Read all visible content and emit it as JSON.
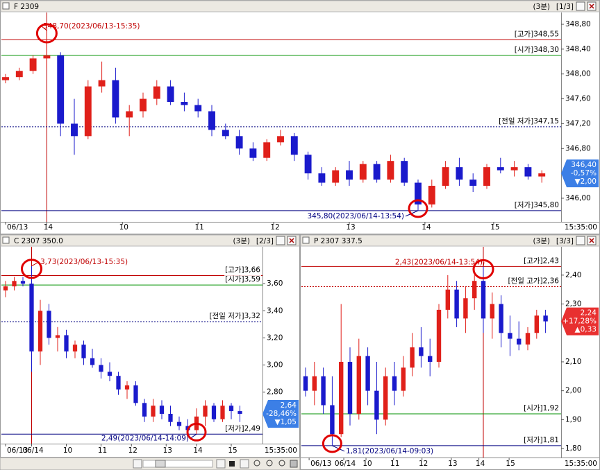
{
  "chart_data": [
    {
      "type": "candlestick",
      "title": "F 2309",
      "interval": "(3분)",
      "page": "[1/3]",
      "up_color": "#e0201a",
      "down_color": "#1a1acc",
      "open": [
        347.9,
        347.95,
        348.05,
        348.25,
        348.3,
        347.2,
        347.0,
        347.8,
        347.9,
        347.3,
        347.4,
        347.6,
        347.8,
        347.55,
        347.5,
        347.4,
        347.1,
        347.0,
        346.8,
        346.65,
        346.9,
        347.0,
        346.7,
        346.4,
        346.25,
        346.45,
        346.3,
        346.55,
        346.3,
        346.6,
        346.25,
        345.9,
        346.2,
        346.5,
        346.3,
        346.2,
        346.5,
        346.45,
        346.5,
        346.35
      ],
      "high": [
        348.0,
        348.1,
        348.3,
        348.7,
        348.35,
        347.6,
        347.9,
        348.2,
        348.1,
        347.5,
        347.7,
        347.9,
        347.9,
        347.7,
        347.6,
        347.5,
        347.2,
        347.1,
        346.9,
        346.95,
        347.1,
        347.05,
        346.75,
        346.5,
        346.5,
        346.6,
        346.6,
        346.6,
        346.7,
        346.65,
        346.3,
        346.3,
        346.6,
        346.65,
        346.4,
        346.55,
        346.65,
        346.6,
        346.55,
        346.45
      ],
      "low": [
        347.85,
        347.9,
        348.0,
        348.1,
        347.0,
        346.7,
        346.95,
        347.7,
        347.2,
        347.0,
        347.3,
        347.5,
        347.5,
        347.4,
        347.3,
        347.0,
        346.95,
        346.7,
        346.6,
        346.6,
        346.85,
        346.6,
        346.3,
        346.2,
        346.2,
        346.2,
        346.25,
        346.25,
        346.25,
        346.2,
        345.8,
        345.85,
        346.15,
        346.2,
        346.1,
        346.15,
        346.4,
        346.35,
        346.3,
        346.25
      ],
      "close": [
        347.95,
        348.05,
        348.25,
        348.3,
        347.2,
        347.0,
        347.8,
        347.9,
        347.3,
        347.4,
        347.6,
        347.8,
        347.55,
        347.5,
        347.4,
        347.1,
        347.0,
        346.8,
        346.65,
        346.9,
        347.0,
        346.7,
        346.4,
        346.25,
        346.45,
        346.3,
        346.55,
        346.3,
        346.6,
        346.25,
        345.9,
        346.2,
        346.5,
        346.3,
        346.2,
        346.5,
        346.45,
        346.5,
        346.35,
        346.4
      ],
      "ylim": [
        345.62,
        348.99
      ],
      "yticks": [
        {
          "value": 346.0,
          "label": "346,00"
        },
        {
          "value": 346.8,
          "label": "346,80"
        },
        {
          "value": 347.2,
          "label": "347,20"
        },
        {
          "value": 347.6,
          "label": "347,60"
        },
        {
          "value": 348.0,
          "label": "348,00"
        },
        {
          "value": 348.4,
          "label": "348,40"
        },
        {
          "value": 348.8,
          "label": "348,80"
        }
      ],
      "xticks": [
        {
          "value": 0,
          "label": "06/13"
        },
        {
          "value": 3,
          "label": "14"
        },
        {
          "value": 8.5,
          "label": "10"
        },
        {
          "value": 14,
          "label": "11"
        },
        {
          "value": 19.5,
          "label": "12"
        },
        {
          "value": 25,
          "label": "13"
        },
        {
          "value": 30.5,
          "label": "14"
        },
        {
          "value": 35.5,
          "label": "15"
        }
      ],
      "time_label": "15:35:00",
      "levels": [
        {
          "label": "[고가]348,55",
          "value": 348.55,
          "color": "#c00000",
          "style": "solid"
        },
        {
          "label": "[시가]348,30",
          "value": 348.3,
          "color": "#009000",
          "style": "solid"
        },
        {
          "label": "[전일 저가]347,15",
          "value": 347.15,
          "color": "#000080",
          "style": "dotted"
        },
        {
          "label": "[저가]345,80",
          "value": 345.8,
          "color": "#000080",
          "style": "solid"
        }
      ],
      "annotations": [
        {
          "text": "348,70(2023/06/13-15:35)",
          "value": 348.7
        },
        {
          "text": "345,80(2023/06/14-13:54)",
          "value": 345.8
        }
      ],
      "last": {
        "value": 346.4,
        "label": "346,40",
        "change": "-0,57%",
        "diff": "▼2,00",
        "color": "#3c7fe6"
      }
    },
    {
      "type": "candlestick",
      "title": "C 2307 350.0",
      "interval": "(3분)",
      "page": "[2/3]",
      "up_color": "#e0201a",
      "down_color": "#1a1acc",
      "open": [
        3.55,
        3.58,
        3.62,
        3.6,
        3.1,
        3.4,
        3.2,
        3.22,
        3.1,
        3.15,
        3.05,
        3.0,
        2.95,
        2.92,
        2.82,
        2.85,
        2.72,
        2.62,
        2.7,
        2.64,
        2.58,
        2.55,
        2.52,
        2.62,
        2.7,
        2.6,
        2.7,
        2.66
      ],
      "high": [
        3.62,
        3.65,
        3.65,
        3.73,
        3.48,
        3.45,
        3.28,
        3.26,
        3.18,
        3.18,
        3.12,
        3.05,
        3.02,
        2.95,
        2.88,
        2.88,
        2.75,
        2.75,
        2.74,
        2.7,
        2.62,
        2.6,
        2.68,
        2.74,
        2.72,
        2.74,
        2.72,
        2.7
      ],
      "low": [
        3.5,
        3.55,
        3.58,
        2.95,
        3.0,
        3.15,
        3.1,
        3.05,
        3.05,
        3.0,
        2.98,
        2.9,
        2.88,
        2.78,
        2.75,
        2.7,
        2.58,
        2.58,
        2.6,
        2.55,
        2.52,
        2.51,
        2.49,
        2.55,
        2.58,
        2.58,
        2.6,
        2.58
      ],
      "close": [
        3.58,
        3.62,
        3.6,
        3.1,
        3.4,
        3.2,
        3.22,
        3.1,
        3.15,
        3.05,
        3.0,
        2.95,
        2.92,
        2.82,
        2.85,
        2.72,
        2.62,
        2.7,
        2.64,
        2.58,
        2.55,
        2.52,
        2.62,
        2.7,
        2.6,
        2.7,
        2.66,
        2.64
      ],
      "ylim": [
        2.42,
        3.872
      ],
      "yticks": [
        {
          "value": 2.8,
          "label": "2,80"
        },
        {
          "value": 3.0,
          "label": "3,00"
        },
        {
          "value": 3.2,
          "label": "3,20"
        },
        {
          "value": 3.4,
          "label": "3,40"
        },
        {
          "value": 3.6,
          "label": "3,60"
        }
      ],
      "xticks": [
        {
          "value": 0,
          "label": "06/13"
        },
        {
          "value": 3,
          "label": "06/14"
        },
        {
          "value": 7,
          "label": "10"
        },
        {
          "value": 11,
          "label": "11"
        },
        {
          "value": 14.5,
          "label": "12"
        },
        {
          "value": 18.5,
          "label": "13"
        },
        {
          "value": 22,
          "label": "14"
        },
        {
          "value": 26,
          "label": "15"
        }
      ],
      "time_label": "15:35:00",
      "levels": [
        {
          "label": "[고가]3,66",
          "value": 3.66,
          "color": "#c00000",
          "style": "solid"
        },
        {
          "label": "[시가]3,59",
          "value": 3.59,
          "color": "#009000",
          "style": "solid"
        },
        {
          "label": "[전일 저가]3,32",
          "value": 3.32,
          "color": "#000080",
          "style": "dotted"
        },
        {
          "label": "[저가]2,49",
          "value": 2.49,
          "color": "#000080",
          "style": "solid"
        }
      ],
      "annotations": [
        {
          "text": "3,73(2023/06/13-15:35)",
          "value": 3.73
        },
        {
          "text": "2,49(2023/06/14-14:09)",
          "value": 2.49
        }
      ],
      "last": {
        "value": 2.64,
        "label": "2,64",
        "change": "-28,46%",
        "diff": "▼1,05",
        "color": "#3c7fe6"
      }
    },
    {
      "type": "candlestick",
      "title": "P 2307 337.5",
      "interval": "(3분)",
      "page": "[3/3]",
      "up_color": "#e0201a",
      "down_color": "#1a1acc",
      "open": [
        2.05,
        2.0,
        2.05,
        1.95,
        1.85,
        2.1,
        1.92,
        2.12,
        2.0,
        1.9,
        2.05,
        2.0,
        2.08,
        2.15,
        2.12,
        2.1,
        2.28,
        2.35,
        2.25,
        2.32,
        2.38,
        2.25,
        2.3,
        2.2,
        2.18,
        2.16,
        2.2,
        2.26
      ],
      "high": [
        2.08,
        2.1,
        2.08,
        2.05,
        2.3,
        2.15,
        2.18,
        2.15,
        2.1,
        2.08,
        2.1,
        2.12,
        2.2,
        2.22,
        2.18,
        2.3,
        2.4,
        2.38,
        2.36,
        2.4,
        2.43,
        2.34,
        2.33,
        2.26,
        2.24,
        2.22,
        2.28,
        2.28
      ],
      "low": [
        1.98,
        1.95,
        1.92,
        1.81,
        1.84,
        1.88,
        1.9,
        1.95,
        1.85,
        1.88,
        1.95,
        1.98,
        2.05,
        2.08,
        2.05,
        2.08,
        2.25,
        2.22,
        2.2,
        2.28,
        2.2,
        2.18,
        2.15,
        2.12,
        2.14,
        2.14,
        2.18,
        2.2
      ],
      "close": [
        2.0,
        2.05,
        1.95,
        1.85,
        2.1,
        1.92,
        2.12,
        2.0,
        1.9,
        2.05,
        2.0,
        2.08,
        2.15,
        2.12,
        2.1,
        2.28,
        2.35,
        2.25,
        2.32,
        2.38,
        2.25,
        2.3,
        2.2,
        2.18,
        2.16,
        2.2,
        2.26,
        2.24
      ],
      "ylim": [
        1.769,
        2.498
      ],
      "yticks": [
        {
          "value": 1.8,
          "label": "1,80"
        },
        {
          "value": 1.9,
          "label": "1,90"
        },
        {
          "value": 2.0,
          "label": "2,00"
        },
        {
          "value": 2.1,
          "label": "2,10"
        },
        {
          "value": 2.3,
          "label": "2,30"
        },
        {
          "value": 2.4,
          "label": "2,40"
        }
      ],
      "xticks": [
        {
          "value": 0.4,
          "label": "06/13"
        },
        {
          "value": 4.3,
          "label": "06/14"
        },
        {
          "value": 6.8,
          "label": "10"
        },
        {
          "value": 9.9,
          "label": "11"
        },
        {
          "value": 13.1,
          "label": "12"
        },
        {
          "value": 16.4,
          "label": "13"
        },
        {
          "value": 19.5,
          "label": "14"
        },
        {
          "value": 22.9,
          "label": "15"
        }
      ],
      "time_label": "15:35:00",
      "levels": [
        {
          "label": "[고가]2,43",
          "value": 2.43,
          "color": "#c00000",
          "style": "solid"
        },
        {
          "label": "[전일 고가]2,36",
          "value": 2.36,
          "color": "#c00000",
          "style": "dotted"
        },
        {
          "label": "[시가]1,92",
          "value": 1.92,
          "color": "#009000",
          "style": "solid"
        },
        {
          "label": "[저가]1,81",
          "value": 1.81,
          "color": "#000080",
          "style": "solid"
        }
      ],
      "annotations": [
        {
          "text": "2,43(2023/06/14-13:54)",
          "value": 2.43
        },
        {
          "text": "1,81(2023/06/14-09:03)",
          "value": 1.81
        }
      ],
      "last": {
        "value": 2.24,
        "label": "2,24",
        "change": "+17,28%",
        "diff": "▲0,33",
        "color": "#e83030"
      }
    }
  ]
}
